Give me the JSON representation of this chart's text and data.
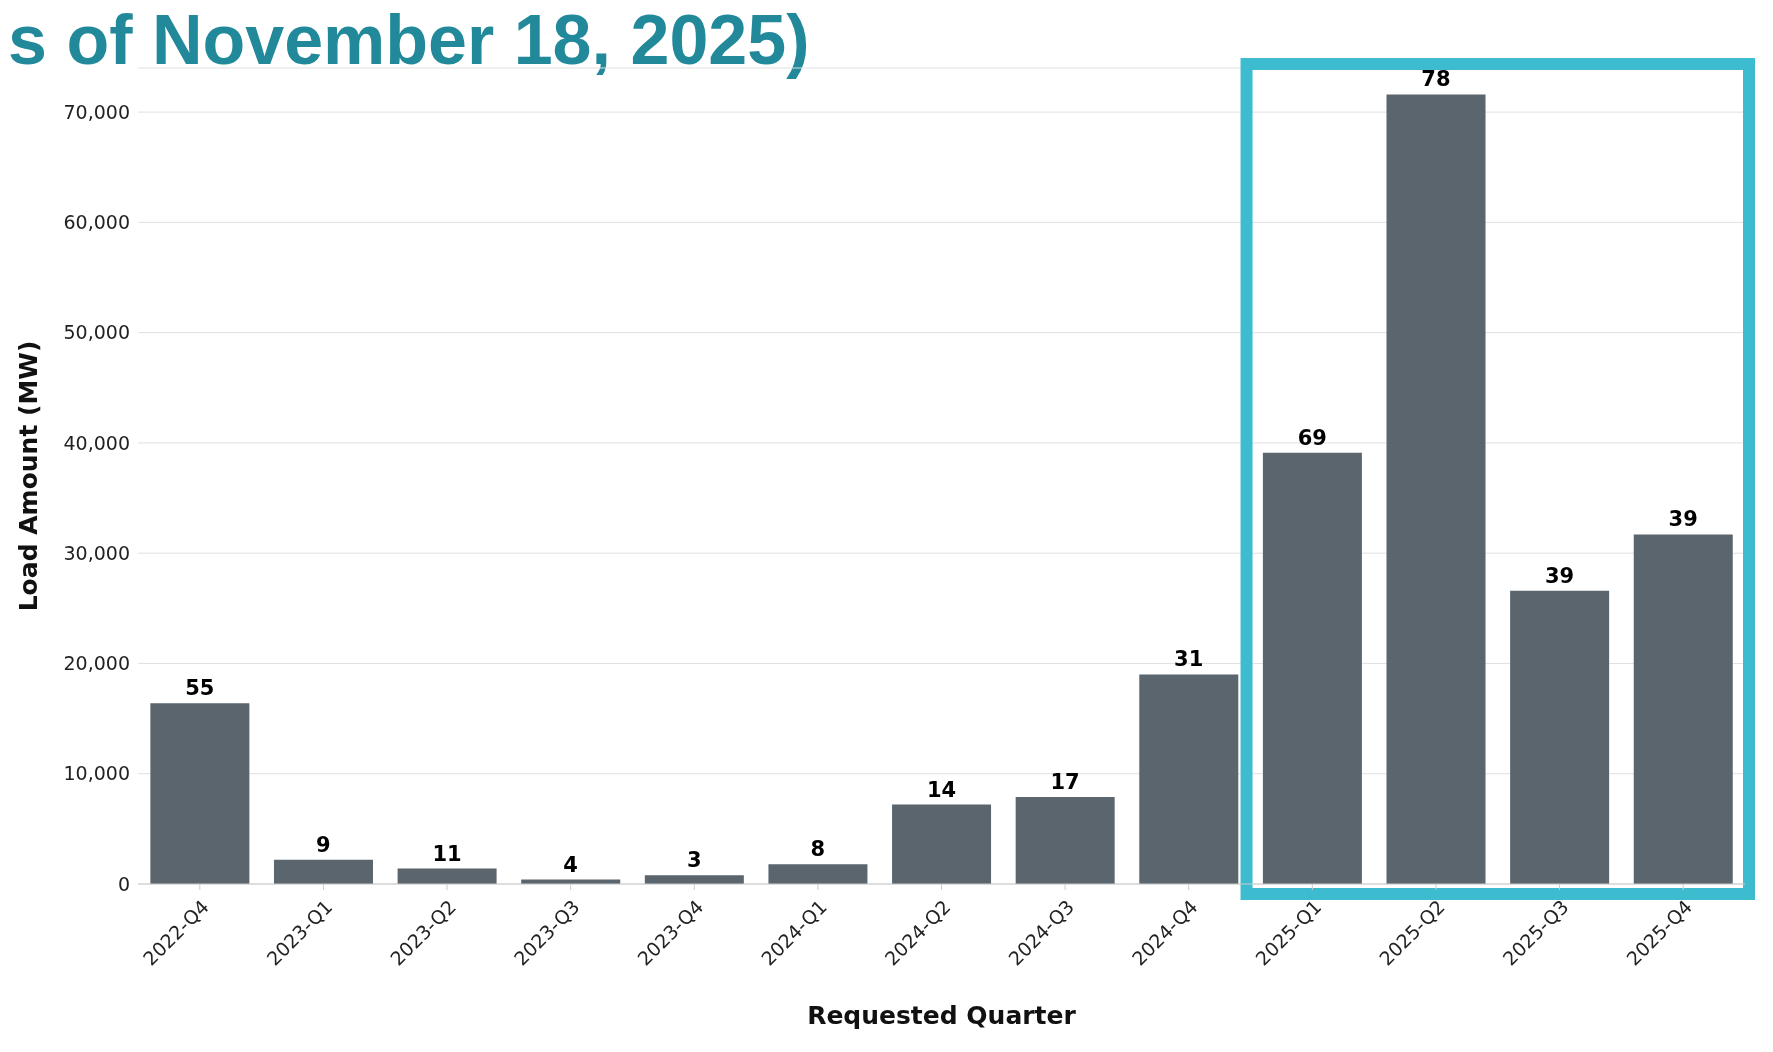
{
  "chart_data": {
    "type": "bar",
    "title": "s of November 18, 2025)",
    "xlabel": "Requested Quarter",
    "ylabel": "Load Amount (MW)",
    "categories": [
      "2022-Q4",
      "2023-Q1",
      "2023-Q2",
      "2023-Q3",
      "2023-Q4",
      "2024-Q1",
      "2024-Q2",
      "2024-Q3",
      "2024-Q4",
      "2025-Q1",
      "2025-Q2",
      "2025-Q3",
      "2025-Q4"
    ],
    "values": [
      16400,
      2200,
      1400,
      400,
      800,
      1800,
      7200,
      7900,
      19000,
      39100,
      71600,
      26600,
      31700
    ],
    "annotations": [
      {
        "text": "55",
        "x": "2022-Q4",
        "y": 16400
      },
      {
        "text": "9",
        "x": "2023-Q1",
        "y": 2200
      },
      {
        "text": "11",
        "x": "2023-Q2",
        "y": 1400
      },
      {
        "text": "4",
        "x": "2023-Q3",
        "y": 400
      },
      {
        "text": "3",
        "x": "2023-Q4",
        "y": 800
      },
      {
        "text": "8",
        "x": "2024-Q1",
        "y": 1800
      },
      {
        "text": "14",
        "x": "2024-Q2",
        "y": 7200
      },
      {
        "text": "17",
        "x": "2024-Q3",
        "y": 7900
      },
      {
        "text": "31",
        "x": "2024-Q4",
        "y": 19000
      },
      {
        "text": "69",
        "x": "2025-Q1",
        "y": 39100
      },
      {
        "text": "78",
        "x": "2025-Q2",
        "y": 71600
      },
      {
        "text": "39",
        "x": "2025-Q3",
        "y": 26600
      },
      {
        "text": "39",
        "x": "2025-Q4",
        "y": 31700
      }
    ],
    "color": "#5a656e",
    "ylim": [
      0,
      74000
    ],
    "yticks": [
      0,
      {
        "value": 10000,
        "label": "10,000"
      },
      {
        "value": 20000,
        "label": "20,000"
      },
      {
        "value": 30000,
        "label": "30,000"
      },
      {
        "value": 40000,
        "label": "40,000"
      },
      {
        "value": 50000,
        "label": "50,000"
      },
      {
        "value": 60000,
        "label": "60,000"
      },
      {
        "value": 70000,
        "label": "70,000"
      }
    ],
    "grid": "y",
    "legend": false
  }
}
